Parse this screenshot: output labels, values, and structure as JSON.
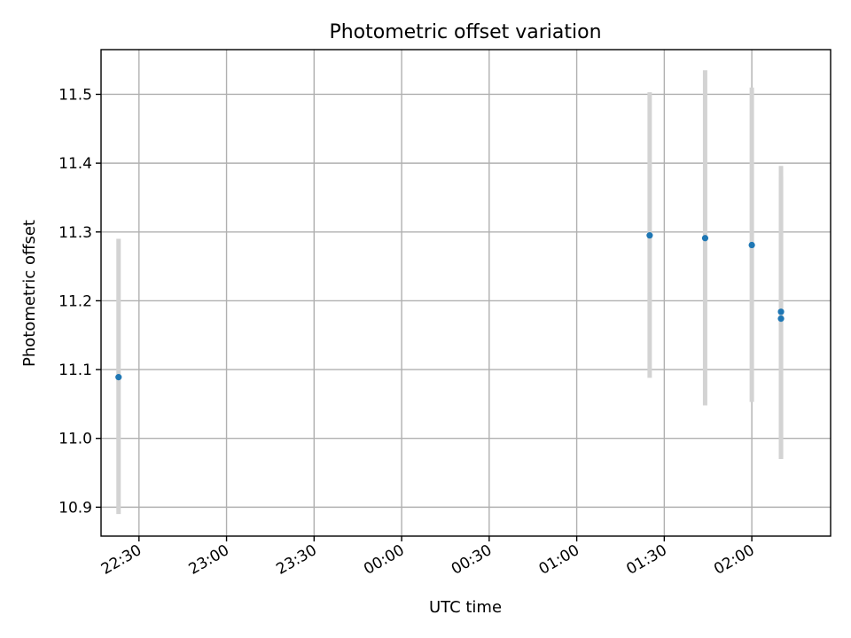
{
  "chart_data": {
    "type": "scatter",
    "title": "Photometric offset variation",
    "xlabel": "UTC time",
    "ylabel": "Photometric offset",
    "x_axis_type": "time",
    "xlim": [
      "22:17",
      "02:27"
    ],
    "ylim": [
      10.858,
      11.565
    ],
    "grid": true,
    "x_ticks": [
      "22:30",
      "23:00",
      "23:30",
      "00:00",
      "00:30",
      "01:00",
      "01:30",
      "02:00"
    ],
    "y_ticks": [
      "10.9",
      "11.0",
      "11.1",
      "11.2",
      "11.3",
      "11.4",
      "11.5"
    ],
    "marker_color": "#1f77b4",
    "errorbar_color": "#d3d3d3",
    "points": [
      {
        "x": "22:23",
        "y": 11.089,
        "yerr_low": 10.89,
        "yerr_high": 11.29
      },
      {
        "x": "01:25",
        "y": 11.295,
        "yerr_low": 11.088,
        "yerr_high": 11.503
      },
      {
        "x": "01:44",
        "y": 11.291,
        "yerr_low": 11.048,
        "yerr_high": 11.535
      },
      {
        "x": "02:00",
        "y": 11.281,
        "yerr_low": 11.053,
        "yerr_high": 11.51
      },
      {
        "x": "02:10",
        "y": 11.184,
        "yerr_low": 10.972,
        "yerr_high": 11.396
      },
      {
        "x": "02:10",
        "y": 11.174,
        "yerr_low": 10.97,
        "yerr_high": 11.38
      }
    ]
  }
}
